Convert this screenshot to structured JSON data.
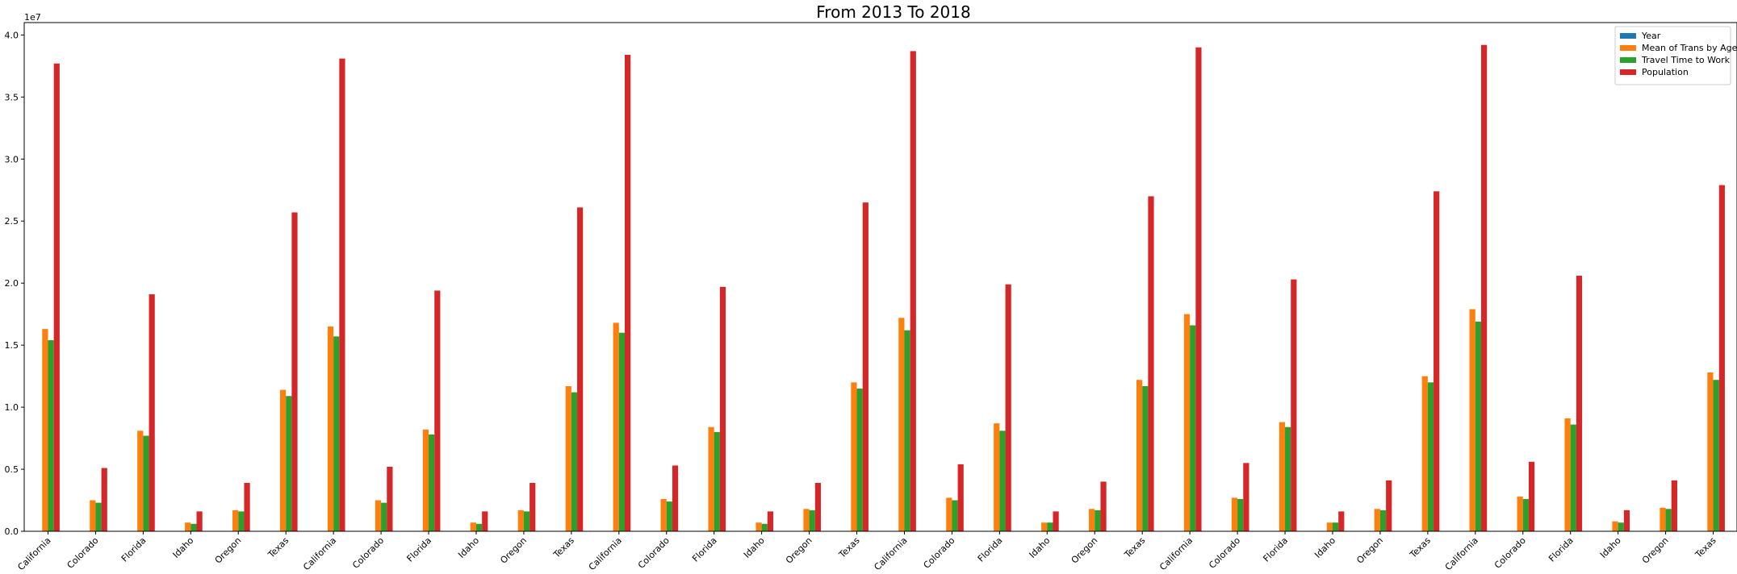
{
  "chart_data": {
    "type": "bar",
    "title": "From 2013 To 2018",
    "xlabel": "",
    "ylabel": "",
    "y_offset_text": "1e7",
    "y_multiplier": 10000000,
    "ylim": [
      0,
      4.1
    ],
    "yticks": [
      "0.0",
      "0.5",
      "1.0",
      "1.5",
      "2.0",
      "2.5",
      "3.0",
      "3.5",
      "4.0"
    ],
    "grid": false,
    "legend_position": "top-right",
    "categories": [
      "California",
      "Colorado",
      "Florida",
      "Idaho",
      "Oregon",
      "Texas",
      "California",
      "Colorado",
      "Florida",
      "Idaho",
      "Oregon",
      "Texas",
      "California",
      "Colorado",
      "Florida",
      "Idaho",
      "Oregon",
      "Texas",
      "California",
      "Colorado",
      "Florida",
      "Idaho",
      "Oregon",
      "Texas",
      "California",
      "Colorado",
      "Florida",
      "Idaho",
      "Oregon",
      "Texas",
      "California",
      "Colorado",
      "Florida",
      "Idaho",
      "Oregon",
      "Texas"
    ],
    "series": [
      {
        "name": "Year",
        "color": "#1f77b4",
        "values": [
          0.0002013,
          0.0002013,
          0.0002013,
          0.0002013,
          0.0002013,
          0.0002013,
          0.0002014,
          0.0002014,
          0.0002014,
          0.0002014,
          0.0002014,
          0.0002014,
          0.0002015,
          0.0002015,
          0.0002015,
          0.0002015,
          0.0002015,
          0.0002015,
          0.0002016,
          0.0002016,
          0.0002016,
          0.0002016,
          0.0002016,
          0.0002016,
          0.0002017,
          0.0002017,
          0.0002017,
          0.0002017,
          0.0002017,
          0.0002017,
          0.0002018,
          0.0002018,
          0.0002018,
          0.0002018,
          0.0002018,
          0.0002018
        ]
      },
      {
        "name": "Mean of Trans by Age",
        "color": "#ff7f0e",
        "values": [
          1.63,
          0.25,
          0.81,
          0.07,
          0.17,
          1.14,
          1.65,
          0.25,
          0.82,
          0.07,
          0.17,
          1.17,
          1.68,
          0.26,
          0.84,
          0.07,
          0.18,
          1.2,
          1.72,
          0.27,
          0.87,
          0.07,
          0.18,
          1.22,
          1.75,
          0.27,
          0.88,
          0.07,
          0.18,
          1.25,
          1.79,
          0.28,
          0.91,
          0.08,
          0.19,
          1.28
        ]
      },
      {
        "name": "Travel Time to Work",
        "color": "#2ca02c",
        "values": [
          1.54,
          0.23,
          0.77,
          0.06,
          0.16,
          1.09,
          1.57,
          0.23,
          0.78,
          0.06,
          0.16,
          1.12,
          1.6,
          0.24,
          0.8,
          0.06,
          0.17,
          1.15,
          1.62,
          0.25,
          0.81,
          0.07,
          0.17,
          1.17,
          1.66,
          0.26,
          0.84,
          0.07,
          0.17,
          1.2,
          1.69,
          0.26,
          0.86,
          0.07,
          0.18,
          1.22
        ]
      },
      {
        "name": "Population",
        "color": "#d62728",
        "values": [
          3.77,
          0.51,
          1.91,
          0.16,
          0.39,
          2.57,
          3.81,
          0.52,
          1.94,
          0.16,
          0.39,
          2.61,
          3.84,
          0.53,
          1.97,
          0.16,
          0.39,
          2.65,
          3.87,
          0.54,
          1.99,
          0.16,
          0.4,
          2.7,
          3.9,
          0.55,
          2.03,
          0.16,
          0.41,
          2.74,
          3.92,
          0.56,
          2.06,
          0.17,
          0.41,
          2.79
        ]
      }
    ]
  }
}
